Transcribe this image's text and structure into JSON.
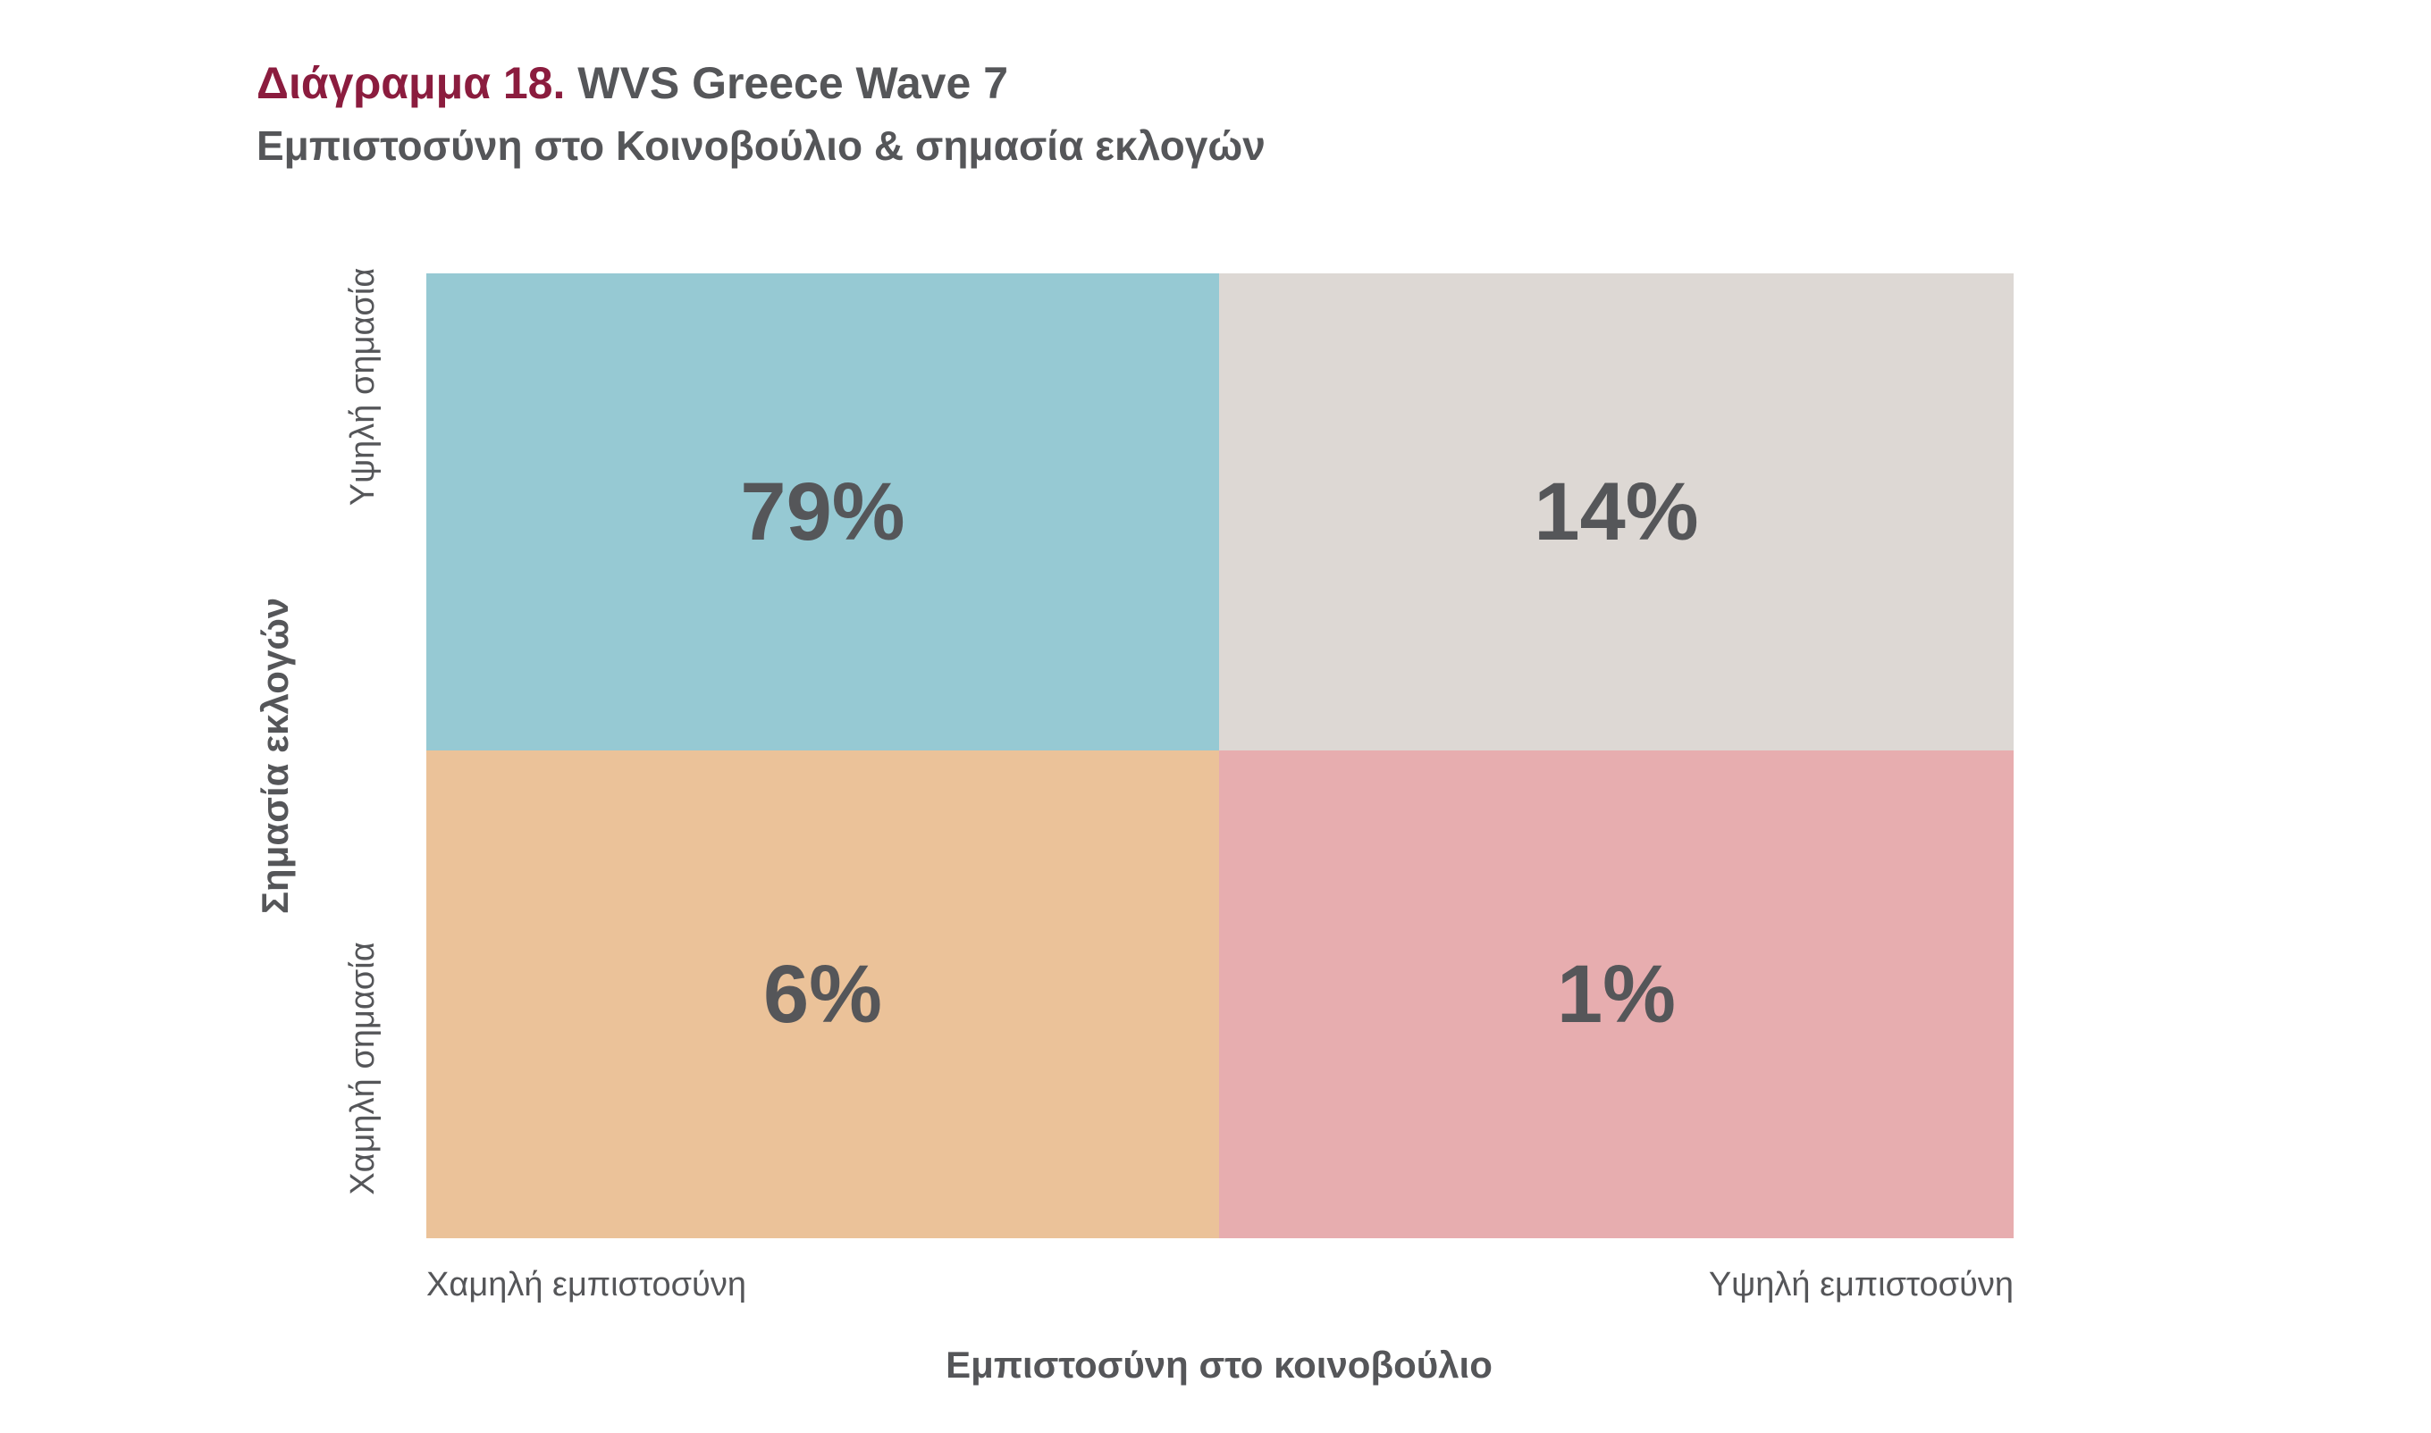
{
  "header": {
    "title_prefix": "Διάγραμμα 18.",
    "title_main": "WVS Greece Wave 7",
    "subtitle": "Εμπιστοσύνη στο Κοινοβούλιο & σημασία εκλογών"
  },
  "chart_data": {
    "type": "heatmap",
    "title": "Διάγραμμα 18. WVS Greece Wave 7",
    "subtitle": "Εμπιστοσύνη στο Κοινοβούλιο & σημασία εκλογών",
    "xlabel": "Εμπιστοσύνη στο κοινοβούλιο",
    "ylabel": "Σημασία εκλογών",
    "x_categories": [
      "Χαμηλή εμπιστοσύνη",
      "Υψηλή εμπιστοσύνη"
    ],
    "y_categories": [
      "Υψηλή σημασία",
      "Χαμηλή σημασία"
    ],
    "cells": [
      {
        "x": "Χαμηλή εμπιστοσύνη",
        "y": "Υψηλή σημασία",
        "value": 79,
        "label": "79%",
        "color": "#96c9d3"
      },
      {
        "x": "Υψηλή εμπιστοσύνη",
        "y": "Υψηλή σημασία",
        "value": 14,
        "label": "14%",
        "color": "#ddd8d4"
      },
      {
        "x": "Χαμηλή εμπιστοσύνη",
        "y": "Χαμηλή σημασία",
        "value": 6,
        "label": "6%",
        "color": "#ebc299"
      },
      {
        "x": "Υψηλή εμπιστοσύνη",
        "y": "Χαμηλή σημασία",
        "value": 1,
        "label": "1%",
        "color": "#e7adaf"
      }
    ],
    "unit": "%",
    "legend": "none",
    "grid": false
  },
  "colors": {
    "title_accent": "#8b1c3e",
    "text": "#555659"
  }
}
